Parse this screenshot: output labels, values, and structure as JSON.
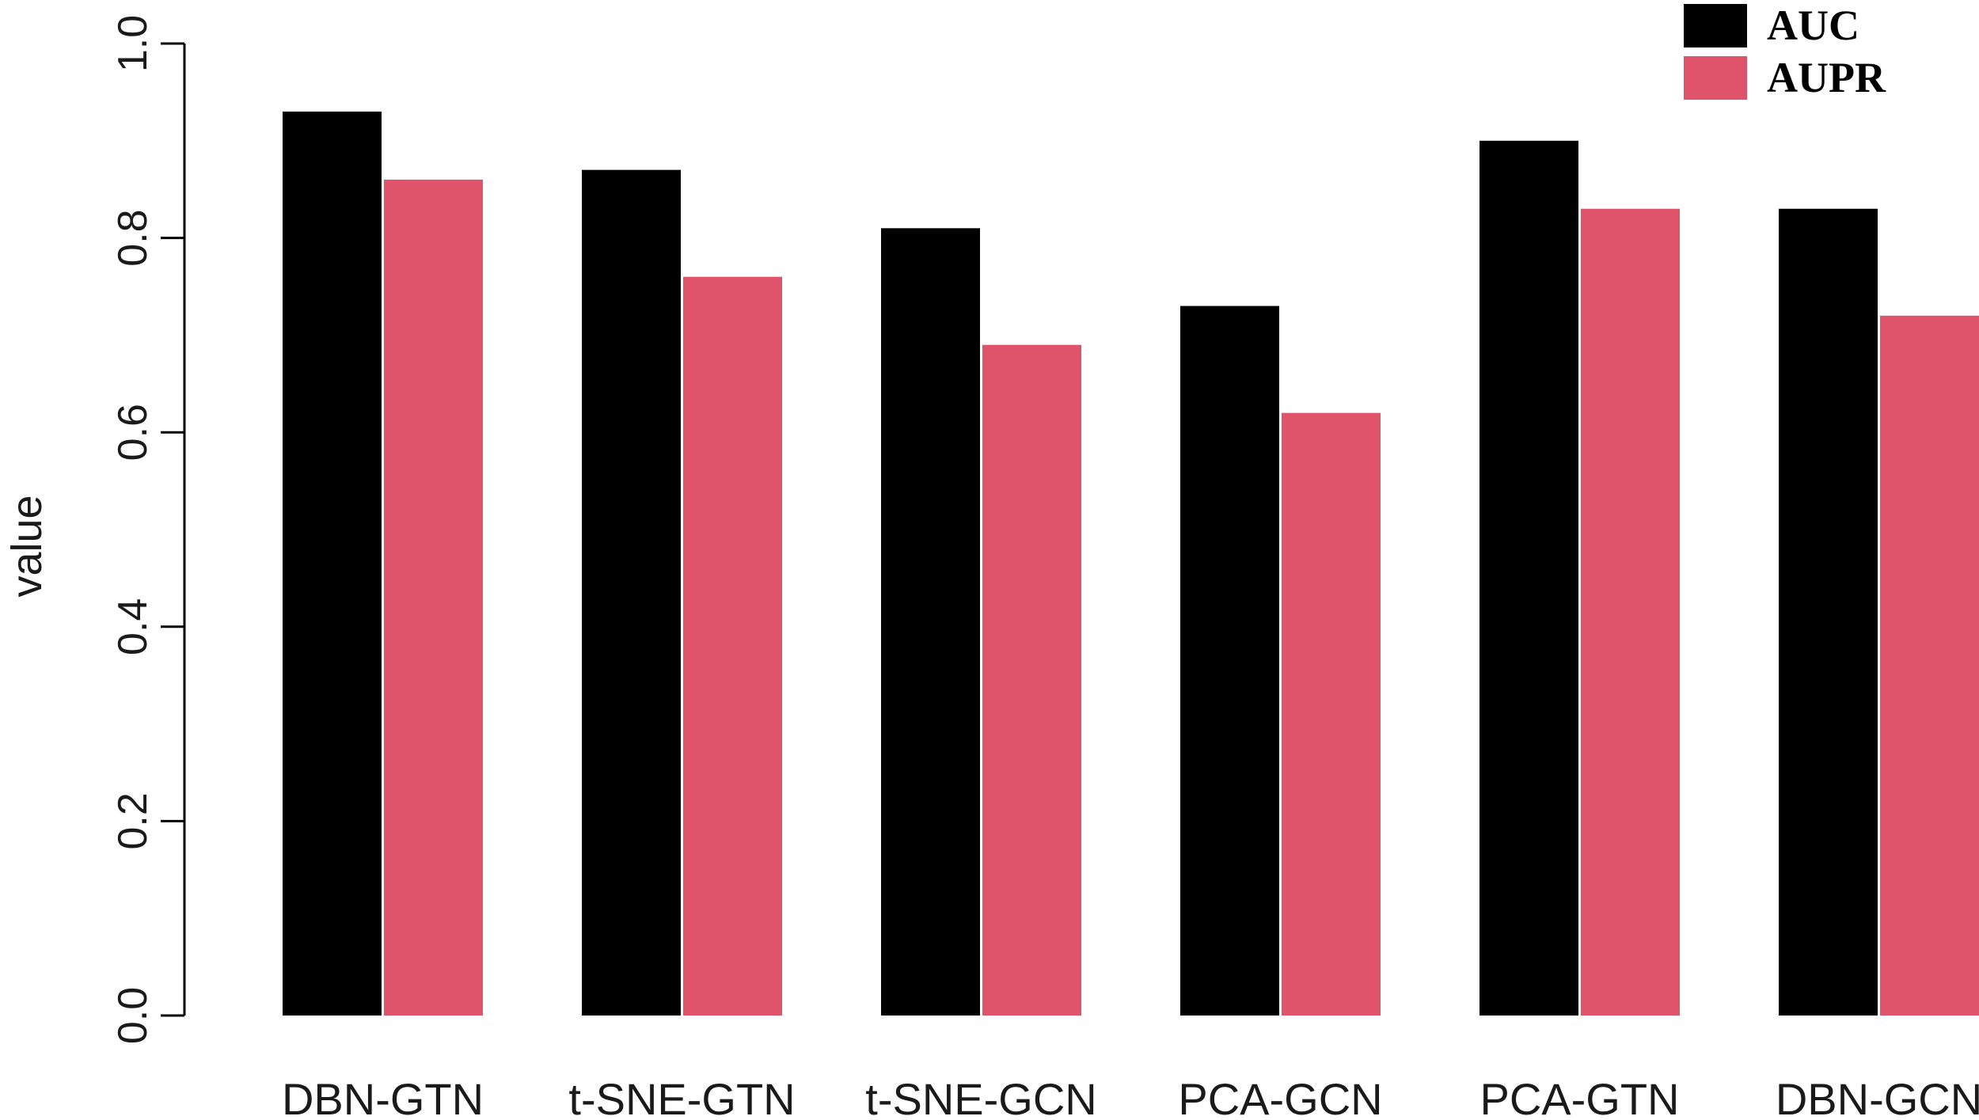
{
  "chart_data": {
    "type": "bar",
    "categories": [
      "DBN-GTN",
      "t-SNE-GTN",
      "t-SNE-GCN",
      "PCA-GCN",
      "PCA-GTN",
      "DBN-GCN"
    ],
    "series": [
      {
        "name": "AUC",
        "color": "#000000",
        "values": [
          0.93,
          0.87,
          0.81,
          0.73,
          0.9,
          0.83
        ]
      },
      {
        "name": "AUPR",
        "color": "#DF536B",
        "values": [
          0.86,
          0.76,
          0.69,
          0.62,
          0.83,
          0.72
        ]
      }
    ],
    "xlabel": "",
    "ylabel": "value",
    "ylim": [
      0,
      1
    ],
    "yticks": [
      "0.0",
      "0.2",
      "0.4",
      "0.6",
      "0.8",
      "1.0"
    ],
    "grid": false,
    "legend_position": "top-right"
  }
}
